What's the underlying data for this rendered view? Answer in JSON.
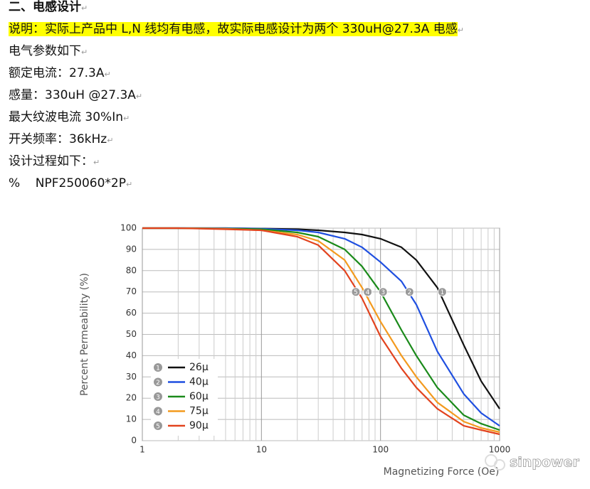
{
  "document": {
    "heading": "二、电感设计",
    "paragraph_mark": "↵",
    "lines": [
      "说明：实际上产品中 L,N 线均有电感，故实际电感设计为两个 330uH@27.3A 电感",
      "电气参数如下",
      "额定电流：27.3A",
      "感量：330uH @27.3A",
      "最大纹波电流 30%In",
      "开关频率：36kHz",
      "设计过程如下：",
      "%    NPF250060*2P"
    ],
    "highlighted_line": 0,
    "watermark": "sinpower"
  },
  "chart_data": {
    "type": "line",
    "x_label": "Magnetizing Force (Oe)",
    "y_label": "Percent Permeability (%)",
    "x": [
      1,
      2,
      5,
      10,
      20,
      30,
      50,
      70,
      100,
      150,
      200,
      300,
      500,
      700,
      1000
    ],
    "xlim": [
      1,
      1000
    ],
    "xticks": [
      1,
      10,
      100,
      1000
    ],
    "xlog": true,
    "ylim": [
      0,
      100
    ],
    "yticks": [
      0,
      10,
      20,
      30,
      40,
      50,
      60,
      70,
      80,
      90,
      100
    ],
    "grid": true,
    "series": [
      {
        "name": "26μ",
        "color": "#111111",
        "marker": "1",
        "marker_x": 330,
        "marker_y": 70,
        "values": [
          100,
          100,
          100,
          99.8,
          99.5,
          99,
          98,
          97,
          95,
          91,
          85,
          72,
          45,
          28,
          15
        ]
      },
      {
        "name": "40μ",
        "color": "#1f4fe0",
        "marker": "2",
        "marker_x": 175,
        "marker_y": 70,
        "values": [
          100,
          100,
          100,
          99.7,
          99,
          98,
          95,
          91,
          84,
          75,
          64,
          42,
          22,
          13,
          7
        ]
      },
      {
        "name": "60μ",
        "color": "#1a8a1a",
        "marker": "3",
        "marker_x": 105,
        "marker_y": 70,
        "values": [
          100,
          100,
          99.8,
          99.5,
          98,
          96,
          90,
          82,
          70,
          52,
          40,
          25,
          12,
          8,
          5
        ]
      },
      {
        "name": "75μ",
        "color": "#f39a1e",
        "marker": "4",
        "marker_x": 78,
        "marker_y": 70,
        "values": [
          100,
          100,
          99.7,
          99,
          97,
          94,
          85,
          72,
          56,
          40,
          30,
          18,
          9,
          6,
          4
        ]
      },
      {
        "name": "90μ",
        "color": "#e2431e",
        "marker": "5",
        "marker_x": 62,
        "marker_y": 70,
        "values": [
          100,
          100,
          99.5,
          99,
          96,
          92,
          80,
          67,
          49,
          34,
          25,
          15,
          7,
          5,
          3
        ]
      }
    ]
  }
}
